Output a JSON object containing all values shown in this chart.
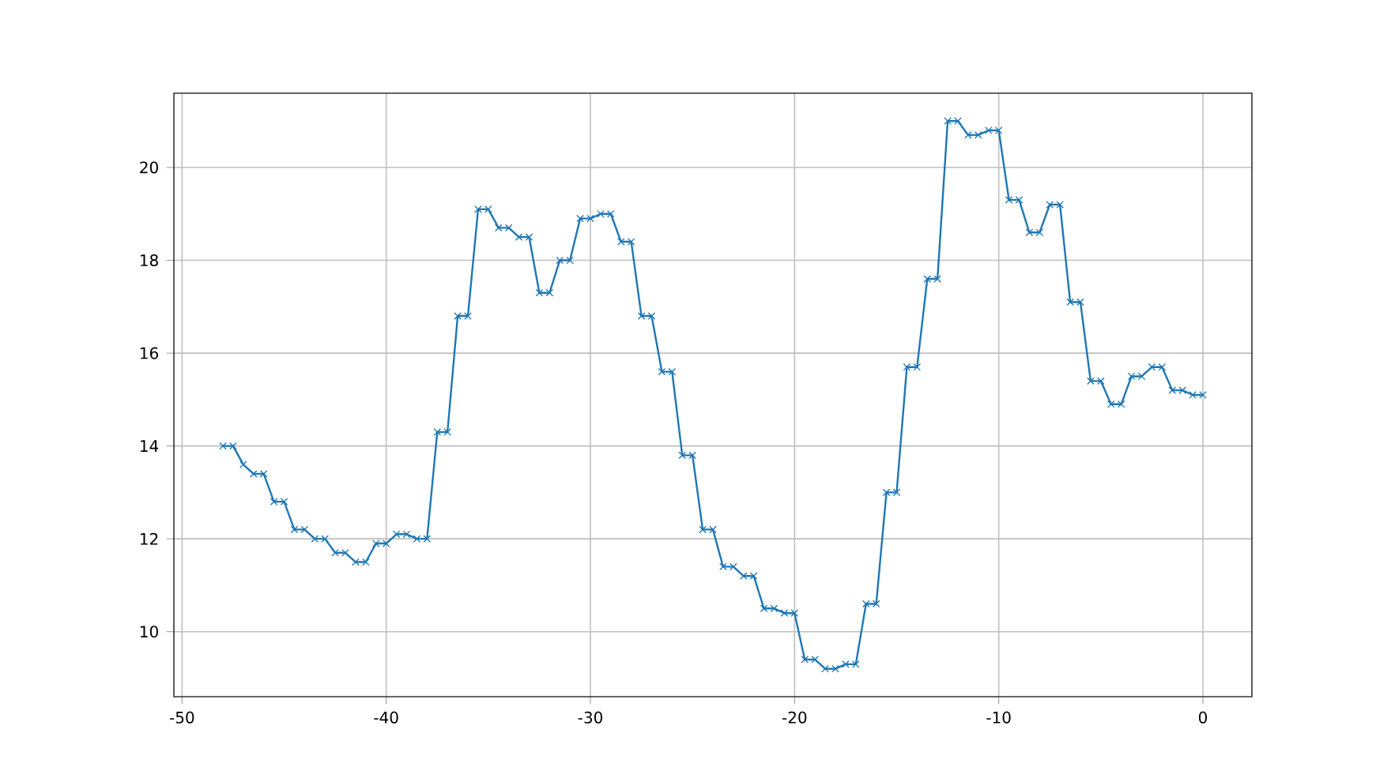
{
  "chart_data": {
    "type": "line",
    "color": "#1f77b4",
    "marker": "cross",
    "grid": true,
    "x": [
      -48,
      -47.5,
      -47,
      -46.5,
      -46,
      -45.5,
      -45,
      -44.5,
      -44,
      -43.5,
      -43,
      -42.5,
      -42,
      -41.5,
      -41,
      -40.5,
      -40,
      -39.5,
      -39,
      -38.5,
      -38,
      -37.5,
      -37,
      -36.5,
      -36,
      -35.5,
      -35,
      -34.5,
      -34,
      -33.5,
      -33,
      -32.5,
      -32,
      -31.5,
      -31,
      -30.5,
      -30,
      -29.5,
      -29,
      -28.5,
      -28,
      -27.5,
      -27,
      -26.5,
      -26,
      -25.5,
      -25,
      -24.5,
      -24,
      -23.5,
      -23,
      -22.5,
      -22,
      -21.5,
      -21,
      -20.5,
      -20,
      -19.5,
      -19,
      -18.5,
      -18,
      -17.5,
      -17,
      -16.5,
      -16,
      -15.5,
      -15,
      -14.5,
      -14,
      -13.5,
      -13,
      -12.5,
      -12,
      -11.5,
      -11,
      -10.5,
      -10,
      -9.5,
      -9,
      -8.5,
      -8,
      -7.5,
      -7,
      -6.5,
      -6,
      -5.5,
      -5,
      -4.5,
      -4,
      -3.5,
      -3,
      -2.5,
      -2,
      -1.5,
      -1,
      -0.5,
      0
    ],
    "values": [
      14.0,
      14.0,
      13.6,
      13.4,
      13.4,
      12.8,
      12.8,
      12.2,
      12.2,
      12.0,
      12.0,
      11.7,
      11.7,
      11.5,
      11.5,
      11.9,
      11.9,
      12.1,
      12.1,
      12.0,
      12.0,
      14.3,
      14.3,
      16.8,
      16.8,
      19.1,
      19.1,
      18.7,
      18.7,
      18.5,
      18.5,
      17.3,
      17.3,
      18.0,
      18.0,
      18.9,
      18.9,
      19.0,
      19.0,
      18.4,
      18.4,
      16.8,
      16.8,
      15.6,
      15.6,
      13.8,
      13.8,
      12.2,
      12.2,
      11.4,
      11.4,
      11.2,
      11.2,
      10.5,
      10.5,
      10.4,
      10.4,
      9.4,
      9.4,
      9.2,
      9.2,
      9.3,
      9.3,
      10.6,
      10.6,
      13.0,
      13.0,
      15.7,
      15.7,
      17.6,
      17.6,
      21.0,
      21.0,
      20.7,
      20.7,
      20.8,
      20.8,
      19.3,
      19.3,
      18.6,
      18.6,
      19.2,
      19.2,
      17.1,
      17.1,
      15.4,
      15.4,
      14.9,
      14.9,
      15.5,
      15.5,
      15.7,
      15.7,
      15.2,
      15.2,
      15.1,
      15.1
    ],
    "xlim": [
      -50.4,
      2.4
    ],
    "ylim": [
      8.6,
      21.6
    ],
    "xticks": [
      -50,
      -40,
      -30,
      -20,
      -10,
      0
    ],
    "yticks": [
      10,
      12,
      14,
      16,
      18,
      20
    ]
  }
}
